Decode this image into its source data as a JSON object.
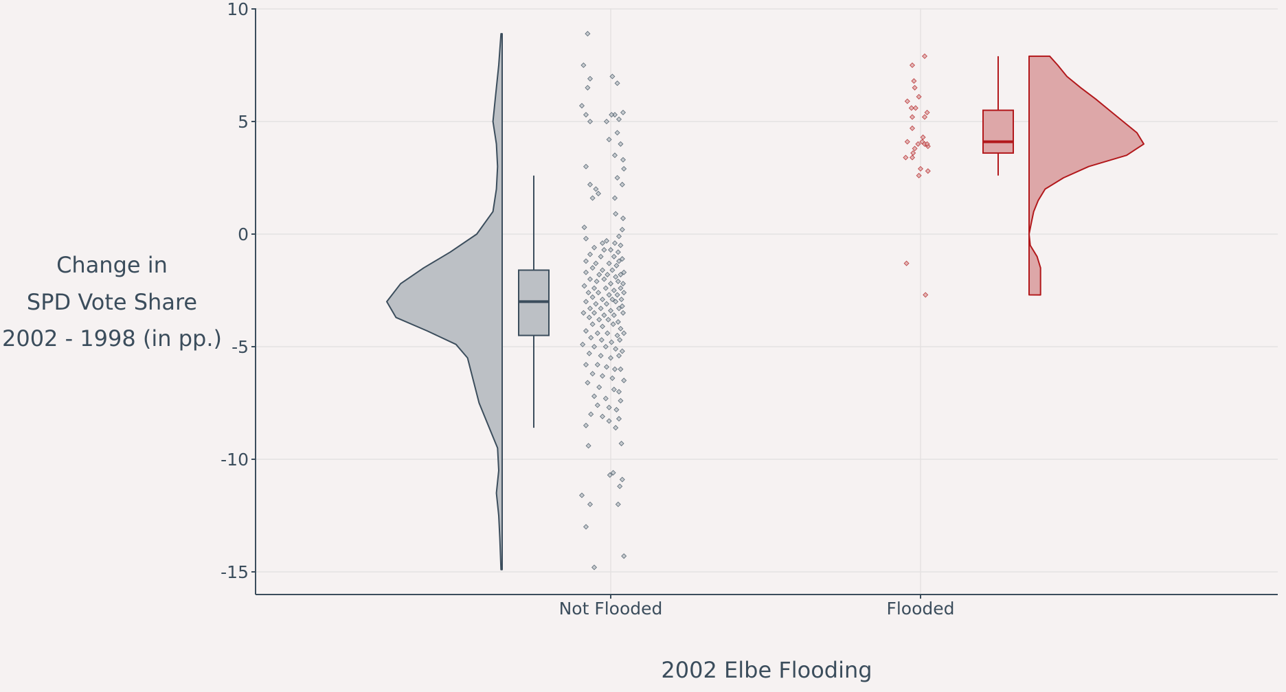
{
  "chart_data": {
    "type": "raincloud",
    "title": "",
    "xlabel": "2002 Elbe Flooding",
    "ylabel_lines": [
      "Change in",
      "SPD Vote Share",
      "2002 - 1998 (in pp.)"
    ],
    "ylim": [
      -16,
      10
    ],
    "yticks": [
      10,
      5,
      0,
      -5,
      -10,
      -15
    ],
    "ytick_labels": [
      "10",
      "5",
      "0",
      "-5",
      "-10",
      "-15"
    ],
    "grid": true,
    "legend": "none",
    "categories": [
      "Not Flooded",
      "Flooded"
    ],
    "series": [
      {
        "category": "Not Flooded",
        "color": "#3b4d5c",
        "fill": "#bcc0c5",
        "box": {
          "min": -8.6,
          "q1": -4.5,
          "median": -3.0,
          "q3": -1.6,
          "max": 2.6
        },
        "density_range": [
          -14.9,
          8.9
        ],
        "density_curve": [
          [
            8.9,
            0.01
          ],
          [
            7.5,
            0.03
          ],
          [
            6.0,
            0.06
          ],
          [
            5.0,
            0.08
          ],
          [
            4.0,
            0.05
          ],
          [
            3.0,
            0.04
          ],
          [
            2.0,
            0.05
          ],
          [
            1.0,
            0.08
          ],
          [
            0.0,
            0.22
          ],
          [
            -0.8,
            0.45
          ],
          [
            -1.5,
            0.68
          ],
          [
            -2.2,
            0.88
          ],
          [
            -3.0,
            1.0
          ],
          [
            -3.7,
            0.92
          ],
          [
            -4.3,
            0.65
          ],
          [
            -4.9,
            0.4
          ],
          [
            -5.5,
            0.3
          ],
          [
            -6.5,
            0.25
          ],
          [
            -7.5,
            0.2
          ],
          [
            -8.5,
            0.12
          ],
          [
            -9.5,
            0.04
          ],
          [
            -10.5,
            0.03
          ],
          [
            -11.5,
            0.05
          ],
          [
            -12.5,
            0.03
          ],
          [
            -13.5,
            0.02
          ],
          [
            -14.9,
            0.01
          ]
        ],
        "points": [
          [
            -0.28,
            8.9
          ],
          [
            -0.33,
            7.5
          ],
          [
            -0.25,
            6.9
          ],
          [
            0.02,
            7.0
          ],
          [
            0.08,
            6.7
          ],
          [
            -0.28,
            6.5
          ],
          [
            -0.35,
            5.7
          ],
          [
            -0.3,
            5.3
          ],
          [
            0.05,
            5.3
          ],
          [
            0.15,
            5.4
          ],
          [
            0.01,
            5.3
          ],
          [
            -0.25,
            5.0
          ],
          [
            0.1,
            5.1
          ],
          [
            -0.05,
            5.0
          ],
          [
            0.08,
            4.5
          ],
          [
            -0.02,
            4.2
          ],
          [
            0.12,
            4.0
          ],
          [
            0.05,
            3.5
          ],
          [
            0.15,
            3.3
          ],
          [
            -0.3,
            3.0
          ],
          [
            0.16,
            2.9
          ],
          [
            0.08,
            2.5
          ],
          [
            -0.25,
            2.2
          ],
          [
            -0.18,
            2.0
          ],
          [
            0.14,
            2.2
          ],
          [
            -0.22,
            1.6
          ],
          [
            -0.15,
            1.8
          ],
          [
            0.05,
            1.6
          ],
          [
            0.06,
            0.9
          ],
          [
            0.15,
            0.7
          ],
          [
            -0.32,
            0.3
          ],
          [
            0.14,
            0.2
          ],
          [
            0.1,
            -0.1
          ],
          [
            -0.3,
            -0.2
          ],
          [
            -0.1,
            -0.4
          ],
          [
            -0.05,
            -0.3
          ],
          [
            0.05,
            -0.4
          ],
          [
            0.12,
            -0.5
          ],
          [
            -0.2,
            -0.6
          ],
          [
            -0.08,
            -0.7
          ],
          [
            0.0,
            -0.7
          ],
          [
            0.09,
            -0.8
          ],
          [
            -0.25,
            -0.9
          ],
          [
            -0.12,
            -1.0
          ],
          [
            0.04,
            -1.0
          ],
          [
            0.14,
            -1.1
          ],
          [
            -0.3,
            -1.2
          ],
          [
            -0.18,
            -1.3
          ],
          [
            -0.02,
            -1.3
          ],
          [
            0.1,
            -1.2
          ],
          [
            0.07,
            -1.4
          ],
          [
            -0.22,
            -1.5
          ],
          [
            -0.1,
            -1.6
          ],
          [
            0.02,
            -1.6
          ],
          [
            0.16,
            -1.7
          ],
          [
            -0.3,
            -1.7
          ],
          [
            -0.14,
            -1.8
          ],
          [
            -0.04,
            -1.8
          ],
          [
            0.06,
            -1.9
          ],
          [
            0.12,
            -1.8
          ],
          [
            -0.25,
            -2.0
          ],
          [
            -0.17,
            -2.1
          ],
          [
            -0.08,
            -2.0
          ],
          [
            0.0,
            -2.2
          ],
          [
            0.09,
            -2.1
          ],
          [
            0.15,
            -2.2
          ],
          [
            -0.32,
            -2.3
          ],
          [
            -0.2,
            -2.4
          ],
          [
            -0.06,
            -2.4
          ],
          [
            0.04,
            -2.5
          ],
          [
            0.12,
            -2.4
          ],
          [
            -0.27,
            -2.6
          ],
          [
            -0.15,
            -2.6
          ],
          [
            -0.02,
            -2.7
          ],
          [
            0.08,
            -2.7
          ],
          [
            0.16,
            -2.6
          ],
          [
            -0.22,
            -2.8
          ],
          [
            -0.1,
            -2.9
          ],
          [
            0.02,
            -2.9
          ],
          [
            0.13,
            -2.9
          ],
          [
            -0.3,
            -3.0
          ],
          [
            -0.18,
            -3.1
          ],
          [
            -0.05,
            -3.1
          ],
          [
            0.06,
            -3.0
          ],
          [
            0.14,
            -3.2
          ],
          [
            -0.25,
            -3.3
          ],
          [
            -0.12,
            -3.3
          ],
          [
            0.0,
            -3.4
          ],
          [
            0.1,
            -3.3
          ],
          [
            -0.33,
            -3.5
          ],
          [
            -0.2,
            -3.5
          ],
          [
            -0.08,
            -3.6
          ],
          [
            0.04,
            -3.6
          ],
          [
            0.15,
            -3.5
          ],
          [
            -0.26,
            -3.7
          ],
          [
            -0.14,
            -3.8
          ],
          [
            -0.03,
            -3.8
          ],
          [
            0.09,
            -3.9
          ],
          [
            -0.22,
            -4.0
          ],
          [
            -0.1,
            -4.1
          ],
          [
            0.03,
            -4.0
          ],
          [
            0.12,
            -4.2
          ],
          [
            -0.3,
            -4.3
          ],
          [
            -0.16,
            -4.4
          ],
          [
            -0.04,
            -4.4
          ],
          [
            0.08,
            -4.5
          ],
          [
            0.16,
            -4.4
          ],
          [
            -0.24,
            -4.6
          ],
          [
            -0.11,
            -4.7
          ],
          [
            0.01,
            -4.8
          ],
          [
            0.11,
            -4.7
          ],
          [
            -0.34,
            -4.9
          ],
          [
            -0.2,
            -5.0
          ],
          [
            -0.06,
            -5.0
          ],
          [
            0.06,
            -5.1
          ],
          [
            0.14,
            -5.2
          ],
          [
            -0.26,
            -5.3
          ],
          [
            -0.12,
            -5.4
          ],
          [
            0.0,
            -5.5
          ],
          [
            0.1,
            -5.4
          ],
          [
            -0.3,
            -5.8
          ],
          [
            -0.16,
            -5.8
          ],
          [
            -0.05,
            -5.9
          ],
          [
            0.05,
            -6.0
          ],
          [
            0.12,
            -6.0
          ],
          [
            -0.22,
            -6.2
          ],
          [
            -0.1,
            -6.3
          ],
          [
            0.02,
            -6.4
          ],
          [
            0.16,
            -6.5
          ],
          [
            -0.28,
            -6.6
          ],
          [
            -0.14,
            -6.8
          ],
          [
            0.04,
            -6.9
          ],
          [
            0.1,
            -7.0
          ],
          [
            -0.2,
            -7.2
          ],
          [
            -0.06,
            -7.3
          ],
          [
            0.12,
            -7.4
          ],
          [
            -0.16,
            -7.6
          ],
          [
            -0.02,
            -7.7
          ],
          [
            0.07,
            -7.8
          ],
          [
            -0.24,
            -8.0
          ],
          [
            -0.1,
            -8.1
          ],
          [
            0.1,
            -8.2
          ],
          [
            -0.3,
            -8.5
          ],
          [
            -0.02,
            -8.3
          ],
          [
            0.06,
            -8.6
          ],
          [
            -0.27,
            -9.4
          ],
          [
            0.13,
            -9.3
          ],
          [
            -0.01,
            -10.7
          ],
          [
            0.03,
            -10.6
          ],
          [
            0.14,
            -10.9
          ],
          [
            0.11,
            -11.2
          ],
          [
            -0.35,
            -11.6
          ],
          [
            -0.25,
            -12.0
          ],
          [
            0.09,
            -12.0
          ],
          [
            -0.3,
            -13.0
          ],
          [
            -0.2,
            -14.8
          ],
          [
            0.16,
            -14.3
          ]
        ]
      },
      {
        "category": "Flooded",
        "color": "#b2181b",
        "fill": "#dda7a8",
        "box": {
          "min": 2.6,
          "q1": 3.6,
          "median": 4.1,
          "q3": 5.5,
          "max": 7.9
        },
        "density_range": [
          -2.7,
          7.9
        ],
        "density_curve": [
          [
            7.9,
            0.18
          ],
          [
            7.5,
            0.25
          ],
          [
            7.0,
            0.33
          ],
          [
            6.5,
            0.45
          ],
          [
            6.0,
            0.58
          ],
          [
            5.5,
            0.7
          ],
          [
            5.0,
            0.82
          ],
          [
            4.5,
            0.94
          ],
          [
            4.0,
            1.0
          ],
          [
            3.5,
            0.85
          ],
          [
            3.0,
            0.52
          ],
          [
            2.5,
            0.3
          ],
          [
            2.0,
            0.14
          ],
          [
            1.5,
            0.08
          ],
          [
            1.0,
            0.04
          ],
          [
            0.5,
            0.02
          ],
          [
            0.0,
            0.0
          ],
          [
            -0.5,
            0.01
          ],
          [
            -1.0,
            0.07
          ],
          [
            -1.5,
            0.1
          ],
          [
            -2.0,
            0.1
          ],
          [
            -2.7,
            0.1
          ]
        ],
        "points": [
          [
            -0.1,
            7.5
          ],
          [
            0.05,
            7.9
          ],
          [
            -0.08,
            6.8
          ],
          [
            -0.07,
            6.5
          ],
          [
            -0.02,
            6.1
          ],
          [
            -0.16,
            5.9
          ],
          [
            -0.11,
            5.6
          ],
          [
            -0.06,
            5.6
          ],
          [
            -0.1,
            5.2
          ],
          [
            0.08,
            5.4
          ],
          [
            0.05,
            5.2
          ],
          [
            -0.1,
            4.7
          ],
          [
            0.03,
            4.3
          ],
          [
            -0.16,
            4.1
          ],
          [
            -0.03,
            4.0
          ],
          [
            0.02,
            4.1
          ],
          [
            0.09,
            3.9
          ],
          [
            0.05,
            4.0
          ],
          [
            -0.07,
            3.8
          ],
          [
            -0.09,
            3.6
          ],
          [
            0.08,
            4.0
          ],
          [
            -0.18,
            3.4
          ],
          [
            -0.1,
            3.4
          ],
          [
            0.0,
            2.9
          ],
          [
            -0.02,
            2.6
          ],
          [
            0.09,
            2.8
          ],
          [
            -0.17,
            -1.3
          ],
          [
            0.06,
            -2.7
          ]
        ]
      }
    ]
  }
}
